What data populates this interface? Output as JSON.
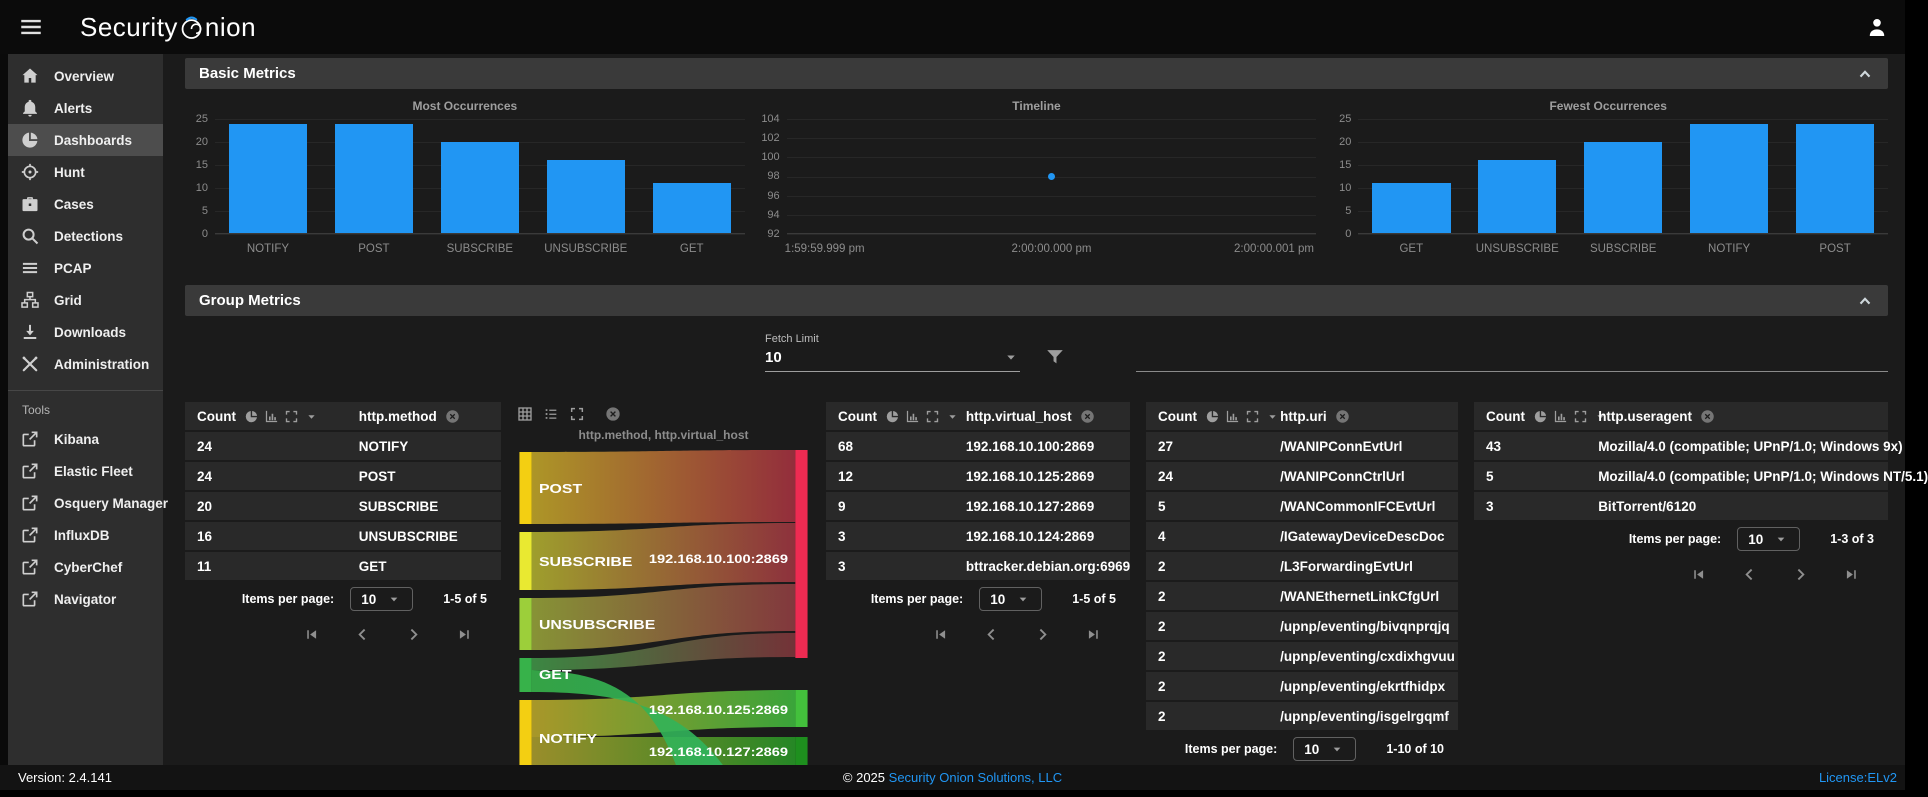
{
  "app": {
    "brand_left": "Security",
    "brand_right": "nion",
    "brand_o_icon": "onion-logo-icon",
    "menu_icon": "menu-icon",
    "user_icon": "person-icon"
  },
  "sections": {
    "basic": "Basic Metrics",
    "group": "Group Metrics"
  },
  "sidebar": {
    "items": [
      {
        "label": "Overview",
        "icon": "home-icon",
        "active": false
      },
      {
        "label": "Alerts",
        "icon": "bell-icon",
        "active": false
      },
      {
        "label": "Dashboards",
        "icon": "pie-chart-icon",
        "active": true
      },
      {
        "label": "Hunt",
        "icon": "crosshair-icon",
        "active": false
      },
      {
        "label": "Cases",
        "icon": "briefcase-icon",
        "active": false
      },
      {
        "label": "Detections",
        "icon": "search-icon",
        "active": false
      },
      {
        "label": "PCAP",
        "icon": "pcap-lines-icon",
        "active": false
      },
      {
        "label": "Grid",
        "icon": "network-grid-icon",
        "active": false
      },
      {
        "label": "Downloads",
        "icon": "download-icon",
        "active": false
      },
      {
        "label": "Administration",
        "icon": "tools-icon",
        "active": false
      }
    ],
    "tools_header": "Tools",
    "tools": [
      {
        "label": "Kibana",
        "icon": "external-link-icon"
      },
      {
        "label": "Elastic Fleet",
        "icon": "external-link-icon"
      },
      {
        "label": "Osquery Manager",
        "icon": "external-link-icon"
      },
      {
        "label": "InfluxDB",
        "icon": "external-link-icon"
      },
      {
        "label": "CyberChef",
        "icon": "external-link-icon"
      },
      {
        "label": "Navigator",
        "icon": "external-link-icon"
      }
    ]
  },
  "fetch_limit": {
    "label": "Fetch Limit",
    "value": "10"
  },
  "pagination": {
    "items_per_page_label": "Items per page:",
    "page_size": "10"
  },
  "chart_data": [
    {
      "type": "bar",
      "title": "Most Occurrences",
      "categories": [
        "NOTIFY",
        "POST",
        "SUBSCRIBE",
        "UNSUBSCRIBE",
        "GET"
      ],
      "values": [
        24,
        24,
        20,
        16,
        11
      ],
      "ylim": [
        0,
        25
      ],
      "yticks": [
        25,
        20,
        15,
        10,
        5,
        0
      ],
      "bar_color": "#2196f3",
      "grid": true
    },
    {
      "type": "scatter",
      "title": "Timeline",
      "yticks": [
        104,
        102,
        100,
        98,
        96,
        94,
        92
      ],
      "ylim": [
        92,
        104
      ],
      "x_ticks": [
        "1:59:59.999 pm",
        "2:00:00.000 pm",
        "2:00:00.001 pm"
      ],
      "points": [
        {
          "x_label": "2:00:00.000 pm",
          "x_frac": 0.5,
          "y": 98
        }
      ],
      "point_color": "#2196f3",
      "grid": true
    },
    {
      "type": "bar",
      "title": "Fewest Occurrences",
      "categories": [
        "GET",
        "UNSUBSCRIBE",
        "SUBSCRIBE",
        "NOTIFY",
        "POST"
      ],
      "values": [
        11,
        16,
        20,
        24,
        24
      ],
      "ylim": [
        0,
        25
      ],
      "yticks": [
        25,
        20,
        15,
        10,
        5,
        0
      ],
      "bar_color": "#2196f3",
      "grid": true
    },
    {
      "type": "sankey",
      "title": "http.method, http.virtual_host",
      "left_nodes": [
        "POST",
        "SUBSCRIBE",
        "UNSUBSCRIBE",
        "GET",
        "NOTIFY"
      ],
      "right_nodes": [
        "192.168.10.100:2869",
        "192.168.10.125:2869",
        "192.168.10.127:2869"
      ],
      "links": [
        {
          "source": "POST",
          "target": "192.168.10.100:2869",
          "value": 24
        },
        {
          "source": "SUBSCRIBE",
          "target": "192.168.10.100:2869",
          "value": 20
        },
        {
          "source": "UNSUBSCRIBE",
          "target": "192.168.10.100:2869",
          "value": 16
        },
        {
          "source": "GET",
          "target": "192.168.10.100:2869",
          "value": 8
        },
        {
          "source": "NOTIFY",
          "target": "192.168.10.125:2869",
          "value": 12
        },
        {
          "source": "NOTIFY",
          "target": "192.168.10.127:2869",
          "value": 9
        }
      ]
    }
  ],
  "group_metrics": {
    "tables": [
      {
        "count_header": "Count",
        "field": "http.method",
        "rows": [
          [
            "24",
            "NOTIFY"
          ],
          [
            "24",
            "POST"
          ],
          [
            "20",
            "SUBSCRIBE"
          ],
          [
            "16",
            "UNSUBSCRIBE"
          ],
          [
            "11",
            "GET"
          ]
        ],
        "range": "1-5 of 5",
        "col2": 55,
        "pager": true
      },
      {
        "count_header": "Count",
        "field": "http.virtual_host",
        "rows": [
          [
            "68",
            "192.168.10.100:2869"
          ],
          [
            "12",
            "192.168.10.125:2869"
          ],
          [
            "9",
            "192.168.10.127:2869"
          ],
          [
            "3",
            "192.168.10.124:2869"
          ],
          [
            "3",
            "bttracker.debian.org:6969"
          ]
        ],
        "range": "1-5 of 5",
        "col2": 46,
        "pager": true
      },
      {
        "count_header": "Count",
        "field": "http.uri",
        "rows": [
          [
            "27",
            "/WANIPConnEvtUrl"
          ],
          [
            "24",
            "/WANIPConnCtrlUrl"
          ],
          [
            "5",
            "/WANCommonIFCEvtUrl"
          ],
          [
            "4",
            "/IGatewayDeviceDescDoc"
          ],
          [
            "2",
            "/L3ForwardingEvtUrl"
          ],
          [
            "2",
            "/WANEthernetLinkCfgUrl"
          ],
          [
            "2",
            "/upnp/eventing/bivqnprqjq"
          ],
          [
            "2",
            "/upnp/eventing/cxdixhgvuu"
          ],
          [
            "2",
            "/upnp/eventing/ekrtfhidpx"
          ],
          [
            "2",
            "/upnp/eventing/isgelrgqmf"
          ]
        ],
        "range": "1-10 of 10",
        "col2": 43,
        "pager": true
      },
      {
        "count_header": "Count",
        "field": "http.useragent",
        "rows": [
          [
            "43",
            "Mozilla/4.0 (compatible; UPnP/1.0; Windows 9x)"
          ],
          [
            "5",
            "Mozilla/4.0 (compatible; UPnP/1.0; Windows NT/5.1)"
          ],
          [
            "3",
            "BitTorrent/6120"
          ]
        ],
        "range": "1-3 of 3",
        "col2": 30,
        "pager": true
      }
    ]
  },
  "footer": {
    "version": "Version: 2.4.141",
    "copyright_prefix": "© 2025",
    "copyright_link": "Security Onion Solutions, LLC",
    "license": "License:ELv2"
  },
  "colors": {
    "accent_blue": "#2196f3",
    "bar_blue": "#2196f3"
  }
}
